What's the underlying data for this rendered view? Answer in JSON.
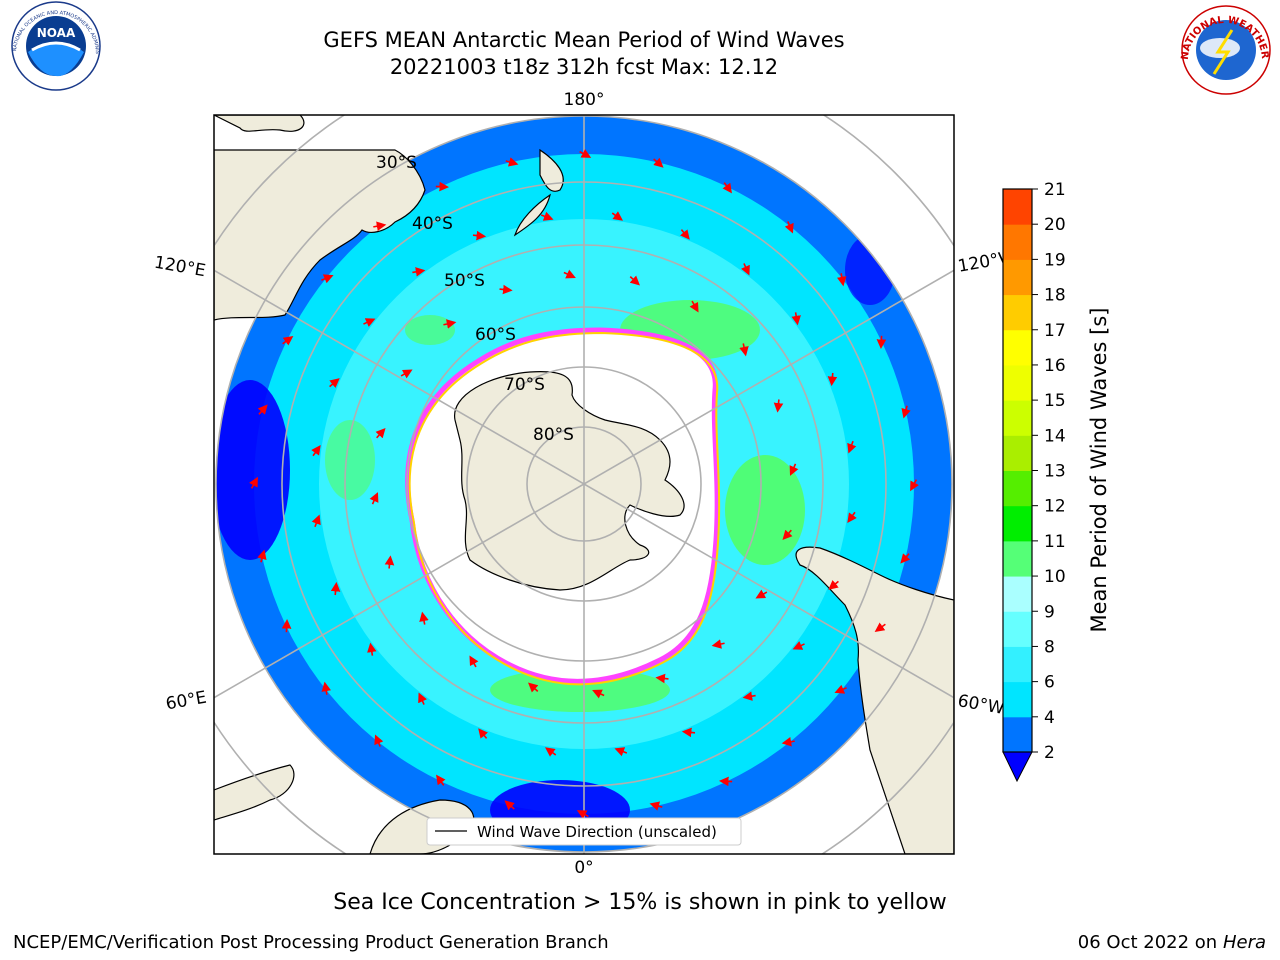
{
  "title": {
    "line1": "GEFS MEAN Antarctic Mean Period of Wind Waves",
    "line2": "20221003 t18z 312h fcst   Max: 12.12"
  },
  "logos": {
    "left": "NOAA",
    "left_ring": "NATIONAL OCEANIC AND ATMOSPHERIC ADMINISTRATION · U.S. DEPARTMENT OF COMMERCE",
    "right_ring": "NATIONAL WEATHER SERVICE"
  },
  "map": {
    "longitude_labels": {
      "top": "180°",
      "bottom": "0°",
      "left_upper": "120°E",
      "left_lower": "60°E",
      "right_upper": "120°W",
      "right_lower": "60°W"
    },
    "latitude_labels": [
      "30°S",
      "40°S",
      "50°S",
      "60°S",
      "70°S",
      "80°S"
    ],
    "legend": "Wind Wave Direction (unscaled)",
    "colors": {
      "ocean_blue": "#0075ff",
      "cyan": "#00e5ff",
      "light_cyan": "#66ffff",
      "green": "#55ff55",
      "land": "#efecdc",
      "ice_pink": "#ff44ff",
      "ice_yellow": "#ffd200",
      "arrow": "#ff0000"
    }
  },
  "colorbar": {
    "label": "Mean Period of Wind Waves [s]",
    "ticks": [
      "2",
      "4",
      "6",
      "8",
      "9",
      "10",
      "11",
      "12",
      "13",
      "14",
      "15",
      "16",
      "17",
      "18",
      "19",
      "20",
      "21"
    ],
    "colors": [
      "#0075ff",
      "#00e5ff",
      "#33f0ff",
      "#66ffff",
      "#aaffff",
      "#55ff77",
      "#00ee00",
      "#55ee00",
      "#aaee00",
      "#ccff00",
      "#eeff00",
      "#ffff00",
      "#ffcc00",
      "#ff9900",
      "#ff7700",
      "#ff4400",
      "#ff0000"
    ],
    "under_color": "#0000ff"
  },
  "subtitle": "Sea Ice Concentration > 15% is shown in pink to yellow",
  "footer": {
    "left": "NCEP/EMC/Verification Post Processing Product Generation Branch",
    "right_prefix": "06 Oct 2022 on ",
    "right_italic": "Hera"
  }
}
